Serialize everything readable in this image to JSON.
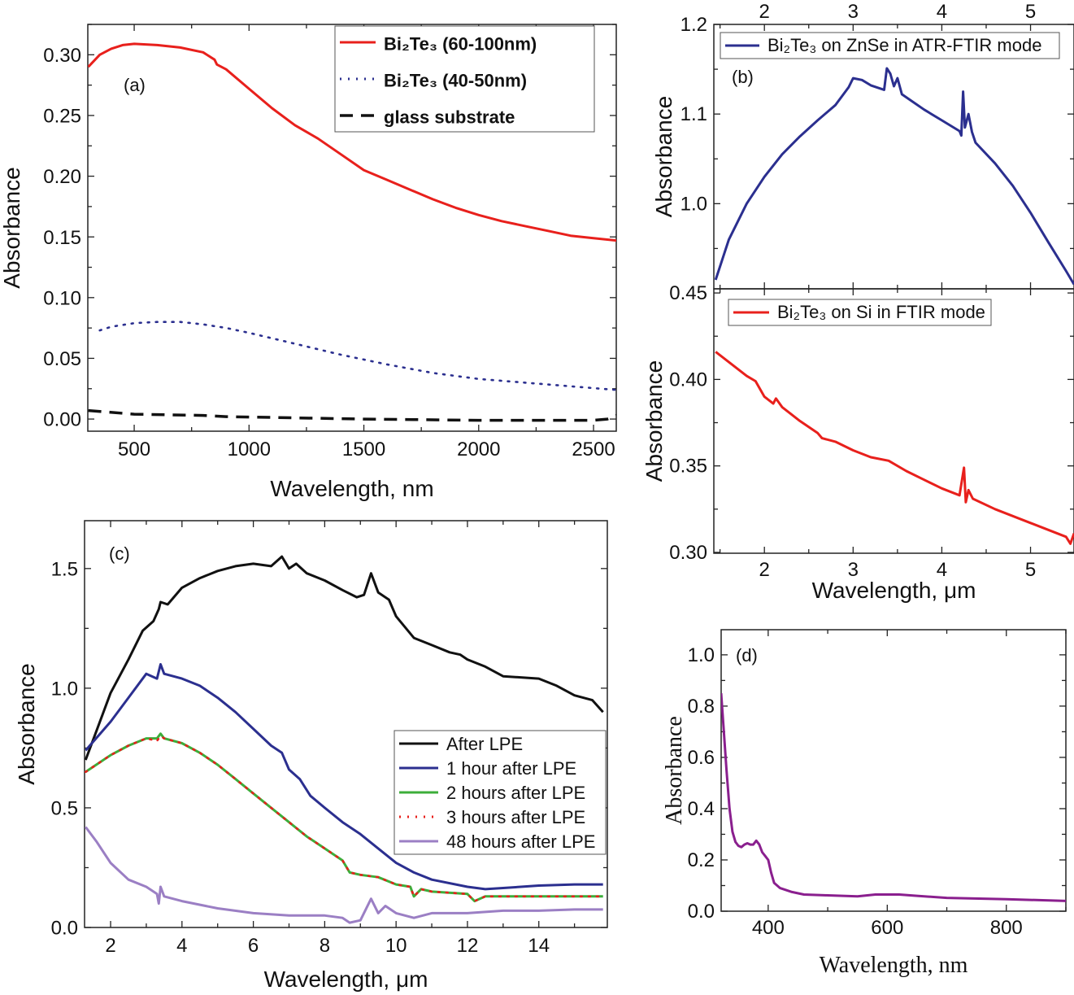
{
  "chart_data": [
    {
      "id": "a",
      "type": "line",
      "panel_label": "(a)",
      "xlabel": "Wavelength, nm",
      "ylabel": "Absorbance",
      "xlim": [
        298,
        2599
      ],
      "ylim": [
        -0.01,
        0.325
      ],
      "xticks": [
        500,
        1000,
        1500,
        2000,
        2500
      ],
      "xtick_labels": [
        "500",
        "1000",
        "1500",
        "2000",
        "2500"
      ],
      "yticks": [
        0,
        0.05,
        0.1,
        0.15,
        0.2,
        0.25,
        0.3
      ],
      "ytick_labels": [
        "0.00",
        "0.05",
        "0.10",
        "0.15",
        "0.20",
        "0.25",
        "0.30"
      ],
      "grid": false,
      "legend_placement": "top-right",
      "series": [
        {
          "name": "Bi₂Te₃ (60-100nm)",
          "color": "#e8201c",
          "style": "solid",
          "x": [
            300,
            350,
            400,
            450,
            500,
            600,
            700,
            800,
            850,
            860,
            900,
            1000,
            1100,
            1200,
            1300,
            1400,
            1500,
            1600,
            1700,
            1800,
            1900,
            2000,
            2100,
            2200,
            2300,
            2400,
            2500,
            2600
          ],
          "y": [
            0.29,
            0.3,
            0.305,
            0.308,
            0.309,
            0.308,
            0.306,
            0.302,
            0.296,
            0.292,
            0.288,
            0.272,
            0.256,
            0.242,
            0.231,
            0.218,
            0.205,
            0.197,
            0.189,
            0.181,
            0.174,
            0.168,
            0.163,
            0.159,
            0.155,
            0.151,
            0.149,
            0.147
          ]
        },
        {
          "name": "Bi₂Te₃ (40-50nm)",
          "color": "#2b2f8f",
          "style": "dotted",
          "x": [
            350,
            400,
            500,
            600,
            700,
            800,
            900,
            1000,
            1200,
            1400,
            1600,
            1800,
            2000,
            2200,
            2400,
            2600
          ],
          "y": [
            0.073,
            0.076,
            0.079,
            0.08,
            0.08,
            0.078,
            0.075,
            0.071,
            0.062,
            0.053,
            0.045,
            0.038,
            0.033,
            0.03,
            0.027,
            0.024
          ]
        },
        {
          "name": "glass substrate",
          "color": "#111111",
          "style": "dashed",
          "x": [
            300,
            500,
            800,
            900,
            1200,
            1500,
            2000,
            2500,
            2560,
            2600
          ],
          "y": [
            0.007,
            0.004,
            0.003,
            0.002,
            0.001,
            0.0,
            -0.001,
            -0.001,
            0.0,
            0.003
          ]
        }
      ]
    },
    {
      "id": "b-upper",
      "type": "line",
      "panel_label": "(b)",
      "xlabel": "",
      "ylabel": "Absorbance",
      "xlim": [
        1.43,
        5.49
      ],
      "ylim": [
        0.905,
        1.2
      ],
      "xticks_top": [
        2,
        3,
        4,
        5
      ],
      "xtick_labels_top": [
        "2",
        "3",
        "4",
        "5"
      ],
      "yticks": [
        1.0,
        1.1,
        1.2
      ],
      "ytick_labels": [
        "1.0",
        "1.1",
        "1.2"
      ],
      "grid": false,
      "legend_placement": "top",
      "series": [
        {
          "name": "Bi₂Te₃ on ZnSe in ATR-FTIR mode",
          "color": "#2b2f8f",
          "style": "solid",
          "x": [
            1.45,
            1.6,
            1.8,
            2.0,
            2.2,
            2.4,
            2.6,
            2.8,
            2.95,
            3.0,
            3.1,
            3.2,
            3.35,
            3.38,
            3.42,
            3.46,
            3.5,
            3.55,
            3.8,
            4.0,
            4.2,
            4.22,
            4.24,
            4.26,
            4.3,
            4.34,
            4.38,
            4.6,
            4.8,
            5.0,
            5.2,
            5.4,
            5.49
          ],
          "y": [
            0.915,
            0.96,
            1.0,
            1.03,
            1.055,
            1.075,
            1.093,
            1.11,
            1.13,
            1.14,
            1.138,
            1.132,
            1.127,
            1.151,
            1.145,
            1.131,
            1.14,
            1.122,
            1.105,
            1.093,
            1.081,
            1.076,
            1.125,
            1.085,
            1.1,
            1.08,
            1.068,
            1.045,
            1.02,
            0.99,
            0.957,
            0.925,
            0.91
          ]
        }
      ]
    },
    {
      "id": "b-lower",
      "type": "line",
      "panel_label": "",
      "xlabel": "Wavelength, μm",
      "ylabel": "Absorbance",
      "xlim": [
        1.43,
        5.49
      ],
      "ylim": [
        0.2995,
        0.4524
      ],
      "xticks": [
        2,
        3,
        4,
        5
      ],
      "xtick_labels": [
        "2",
        "3",
        "4",
        "5"
      ],
      "yticks": [
        0.3,
        0.35,
        0.4,
        0.45
      ],
      "ytick_labels": [
        "0.30",
        "0.35",
        "0.40",
        "0.45"
      ],
      "grid": false,
      "legend_placement": "top",
      "series": [
        {
          "name": "Bi₂Te₃ on Si in FTIR mode",
          "color": "#e8201c",
          "style": "solid",
          "x": [
            1.45,
            1.6,
            1.8,
            1.9,
            2.0,
            2.1,
            2.13,
            2.2,
            2.4,
            2.6,
            2.65,
            2.8,
            3.0,
            3.2,
            3.4,
            3.6,
            3.8,
            4.0,
            4.2,
            4.25,
            4.27,
            4.3,
            4.35,
            4.6,
            4.8,
            5.0,
            5.2,
            5.4,
            5.45,
            5.49
          ],
          "y": [
            0.416,
            0.41,
            0.402,
            0.399,
            0.39,
            0.386,
            0.389,
            0.384,
            0.376,
            0.369,
            0.366,
            0.364,
            0.359,
            0.355,
            0.353,
            0.347,
            0.342,
            0.337,
            0.333,
            0.349,
            0.329,
            0.336,
            0.331,
            0.325,
            0.321,
            0.317,
            0.313,
            0.309,
            0.305,
            0.311
          ]
        }
      ]
    },
    {
      "id": "c",
      "type": "line",
      "panel_label": "(c)",
      "xlabel": "Wavelength, μm",
      "ylabel": "Absorbance",
      "xlim": [
        1.27,
        15.92
      ],
      "ylim": [
        0,
        1.7
      ],
      "xticks": [
        2,
        4,
        6,
        8,
        10,
        12,
        14
      ],
      "xtick_labels": [
        "2",
        "4",
        "6",
        "8",
        "10",
        "12",
        "14"
      ],
      "yticks": [
        0,
        0.5,
        1.0,
        1.5
      ],
      "ytick_labels": [
        "0.0",
        "0.5",
        "1.0",
        "1.5"
      ],
      "grid": false,
      "legend_placement": "bottom-right",
      "series": [
        {
          "name": "After LPE",
          "color": "#111111",
          "style": "solid",
          "x": [
            1.3,
            1.6,
            2,
            2.5,
            2.9,
            3.2,
            3.35,
            3.4,
            3.6,
            4,
            4.5,
            5,
            5.5,
            6,
            6.5,
            6.8,
            7,
            7.2,
            7.5,
            8,
            8.5,
            8.9,
            9.1,
            9.3,
            9.5,
            9.8,
            10,
            10.5,
            11,
            11.5,
            11.8,
            12,
            12.5,
            13,
            14,
            14.5,
            15,
            15.5,
            15.8
          ],
          "y": [
            0.7,
            0.82,
            0.98,
            1.12,
            1.24,
            1.28,
            1.33,
            1.36,
            1.35,
            1.42,
            1.46,
            1.49,
            1.51,
            1.52,
            1.51,
            1.55,
            1.5,
            1.52,
            1.48,
            1.45,
            1.41,
            1.38,
            1.39,
            1.48,
            1.4,
            1.37,
            1.3,
            1.21,
            1.18,
            1.15,
            1.14,
            1.12,
            1.09,
            1.05,
            1.04,
            1.01,
            0.97,
            0.95,
            0.9
          ]
        },
        {
          "name": "1 hour after LPE",
          "color": "#2b2f8f",
          "style": "solid",
          "x": [
            1.3,
            2,
            2.5,
            3,
            3.3,
            3.4,
            3.5,
            4,
            4.5,
            5,
            5.5,
            6,
            6.5,
            6.8,
            7,
            7.3,
            7.6,
            8,
            8.5,
            9,
            9.5,
            10,
            10.5,
            11,
            12,
            12.5,
            13,
            14,
            15,
            15.8
          ],
          "y": [
            0.74,
            0.86,
            0.96,
            1.06,
            1.04,
            1.1,
            1.06,
            1.04,
            1.01,
            0.96,
            0.9,
            0.83,
            0.76,
            0.73,
            0.66,
            0.62,
            0.55,
            0.5,
            0.44,
            0.39,
            0.33,
            0.27,
            0.23,
            0.2,
            0.17,
            0.16,
            0.165,
            0.175,
            0.18,
            0.18
          ]
        },
        {
          "name": "2 hours after LPE",
          "color": "#3cae3a",
          "style": "solid",
          "x": [
            1.3,
            2,
            2.5,
            3,
            3.3,
            3.4,
            3.5,
            4,
            4.5,
            5,
            5.5,
            6,
            6.5,
            7,
            7.5,
            8,
            8.5,
            8.7,
            9,
            9.5,
            10,
            10.4,
            10.5,
            10.7,
            11,
            12,
            12.2,
            12.5,
            13,
            14,
            15,
            15.8
          ],
          "y": [
            0.65,
            0.72,
            0.76,
            0.79,
            0.79,
            0.81,
            0.79,
            0.77,
            0.73,
            0.68,
            0.62,
            0.56,
            0.5,
            0.44,
            0.38,
            0.33,
            0.28,
            0.23,
            0.22,
            0.21,
            0.18,
            0.17,
            0.13,
            0.16,
            0.15,
            0.14,
            0.11,
            0.13,
            0.13,
            0.13,
            0.13,
            0.13
          ]
        },
        {
          "name": "3 hours after LPE",
          "color": "#e8201c",
          "style": "dotted",
          "x": [
            1.3,
            2,
            2.5,
            3,
            3.3,
            3.4,
            3.5,
            4,
            4.5,
            5,
            5.5,
            6,
            6.5,
            7,
            7.5,
            8,
            8.5,
            8.7,
            9,
            9.5,
            10,
            10.4,
            10.5,
            10.7,
            11,
            12,
            12.2,
            12.5,
            13,
            14,
            15,
            15.8
          ],
          "y": [
            0.65,
            0.72,
            0.76,
            0.79,
            0.78,
            0.8,
            0.79,
            0.77,
            0.73,
            0.68,
            0.62,
            0.56,
            0.5,
            0.44,
            0.38,
            0.33,
            0.28,
            0.23,
            0.22,
            0.21,
            0.18,
            0.17,
            0.13,
            0.16,
            0.15,
            0.14,
            0.11,
            0.13,
            0.13,
            0.13,
            0.13,
            0.13
          ]
        },
        {
          "name": "48 hours after LPE",
          "color": "#9b7fc4",
          "style": "solid",
          "x": [
            1.3,
            1.6,
            2,
            2.5,
            3,
            3.3,
            3.35,
            3.4,
            3.5,
            4,
            5,
            6,
            7,
            7.5,
            8,
            8.5,
            8.7,
            9,
            9.3,
            9.5,
            9.7,
            10,
            10.5,
            11,
            12,
            13,
            14,
            15,
            15.8
          ],
          "y": [
            0.42,
            0.36,
            0.27,
            0.2,
            0.17,
            0.14,
            0.1,
            0.17,
            0.13,
            0.11,
            0.08,
            0.06,
            0.05,
            0.05,
            0.05,
            0.04,
            0.02,
            0.03,
            0.12,
            0.06,
            0.09,
            0.06,
            0.04,
            0.06,
            0.06,
            0.07,
            0.07,
            0.075,
            0.075
          ]
        }
      ]
    },
    {
      "id": "d",
      "type": "line",
      "panel_label": "(d)",
      "xlabel": "Wavelength, nm",
      "ylabel": "Absorbance",
      "xlim": [
        321,
        900
      ],
      "ylim": [
        0,
        1.098
      ],
      "xticks": [
        400,
        600,
        800
      ],
      "xtick_labels": [
        "400",
        "600",
        "800"
      ],
      "yticks": [
        0,
        0.2,
        0.4,
        0.6,
        0.8,
        1.0
      ],
      "ytick_labels": [
        "0.0",
        "0.2",
        "0.4",
        "0.6",
        "0.8",
        "1.0"
      ],
      "grid": false,
      "series": [
        {
          "color": "#8a1f8e",
          "style": "solid",
          "x": [
            321,
            325,
            330,
            335,
            340,
            345,
            350,
            355,
            360,
            365,
            370,
            375,
            380,
            385,
            390,
            395,
            400,
            405,
            410,
            420,
            440,
            460,
            500,
            550,
            580,
            620,
            650,
            700,
            800,
            900
          ],
          "y": [
            0.85,
            0.72,
            0.55,
            0.4,
            0.31,
            0.27,
            0.255,
            0.25,
            0.26,
            0.265,
            0.26,
            0.26,
            0.275,
            0.26,
            0.23,
            0.215,
            0.2,
            0.15,
            0.11,
            0.09,
            0.075,
            0.065,
            0.062,
            0.058,
            0.065,
            0.065,
            0.06,
            0.052,
            0.047,
            0.04
          ]
        }
      ]
    }
  ]
}
